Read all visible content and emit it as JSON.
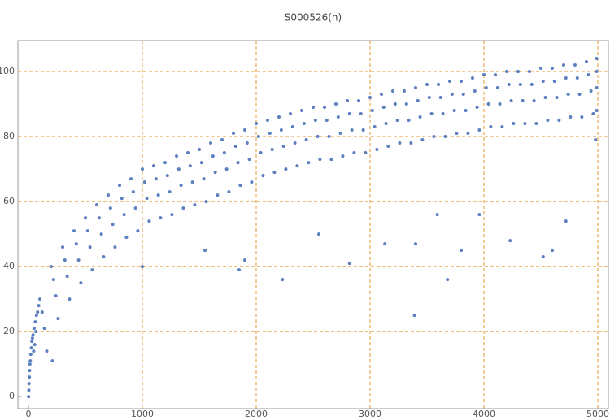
{
  "chart_data": {
    "type": "scatter",
    "title": "S000526(n)",
    "color": "#5b7fbf",
    "grid": true,
    "xlim": [
      -93,
      5093
    ],
    "ylim": [
      -3.7,
      109.5
    ],
    "xticks": [
      0,
      1000,
      2000,
      3000,
      4000,
      5000
    ],
    "yticks": [
      0,
      20,
      40,
      60,
      80,
      100
    ],
    "x": [
      100,
      120,
      140,
      160,
      200,
      220,
      240,
      260,
      300,
      320,
      340,
      360,
      400,
      420,
      440,
      460,
      500,
      520,
      540,
      560,
      600,
      620,
      640,
      660,
      700,
      720,
      740,
      760,
      800,
      820,
      840,
      860,
      900,
      920,
      940,
      960,
      1000,
      1020,
      1040,
      1060,
      1100,
      1120,
      1140,
      1160,
      1200,
      1220,
      1240,
      1260,
      1300,
      1320,
      1340,
      1360,
      1400,
      1420,
      1440,
      1460,
      1500,
      1520,
      1540,
      1560,
      1600,
      1620,
      1640,
      1660,
      1700,
      1720,
      1740,
      1760,
      1800,
      1820,
      1840,
      1860,
      1900,
      1920,
      1940,
      1960,
      2000,
      2020,
      2040,
      2060,
      2100,
      2120,
      2140,
      2160,
      2200,
      2220,
      2240,
      2260,
      2300,
      2320,
      2340,
      2360,
      2400,
      2420,
      2440,
      2460,
      2500,
      2520,
      2540,
      2560,
      2600,
      2620,
      2640,
      2660,
      2700,
      2720,
      2740,
      2760,
      2800,
      2820,
      2840,
      2860,
      2900,
      2920,
      2940,
      2960,
      3000,
      3020,
      3040,
      3060,
      3100,
      3120,
      3140,
      3160,
      3200,
      3220,
      3240,
      3260,
      3300,
      3320,
      3340,
      3360,
      3400,
      3420,
      3440,
      3460,
      3500,
      3520,
      3540,
      3560,
      3600,
      3620,
      3640,
      3660,
      3700,
      3720,
      3740,
      3760,
      3800,
      3820,
      3840,
      3860,
      3900,
      3920,
      3940,
      3960,
      4000,
      4020,
      4040,
      4060,
      4100,
      4120,
      4140,
      4160,
      4200,
      4220,
      4240,
      4260,
      4300,
      4320,
      4340,
      4360,
      4400,
      4420,
      4440,
      4460,
      4500,
      4520,
      4540,
      4560,
      4600,
      4620,
      4640,
      4660,
      4700,
      4720,
      4740,
      4760,
      4800,
      4820,
      4840,
      4860,
      4900,
      4920,
      4940,
      4960,
      4990,
      4990,
      4990,
      4990,
      1,
      3,
      5,
      8,
      10,
      13,
      16,
      20,
      25,
      30,
      35,
      40,
      50,
      60,
      70,
      80,
      45,
      55,
      65,
      90,
      210,
      2230,
      2820,
      3390,
      3680,
      4520,
      3130,
      3400,
      3800,
      4230,
      4600,
      1850,
      1900,
      2550,
      4720,
      4980,
      1000,
      1550,
      3960,
      3590
    ],
    "values": [
      30,
      26,
      21,
      14,
      40,
      36,
      31,
      24,
      46,
      42,
      37,
      30,
      51,
      47,
      42,
      35,
      55,
      51,
      46,
      39,
      59,
      55,
      50,
      43,
      62,
      58,
      53,
      46,
      65,
      61,
      56,
      49,
      67,
      63,
      58,
      51,
      70,
      66,
      61,
      54,
      71,
      67,
      62,
      55,
      72,
      68,
      63,
      56,
      74,
      70,
      65,
      58,
      75,
      71,
      66,
      59,
      76,
      72,
      67,
      60,
      78,
      74,
      69,
      62,
      79,
      75,
      70,
      63,
      81,
      77,
      72,
      65,
      82,
      78,
      73,
      66,
      84,
      80,
      75,
      68,
      85,
      81,
      76,
      69,
      86,
      82,
      77,
      70,
      87,
      83,
      78,
      71,
      88,
      84,
      79,
      72,
      89,
      85,
      80,
      73,
      89,
      85,
      80,
      73,
      90,
      86,
      81,
      74,
      91,
      87,
      82,
      75,
      91,
      87,
      82,
      75,
      92,
      88,
      83,
      76,
      93,
      89,
      84,
      77,
      94,
      90,
      85,
      78,
      94,
      90,
      85,
      78,
      95,
      91,
      86,
      79,
      96,
      92,
      87,
      80,
      96,
      92,
      87,
      80,
      97,
      93,
      88,
      81,
      97,
      93,
      88,
      81,
      98,
      94,
      89,
      82,
      99,
      95,
      90,
      83,
      99,
      95,
      90,
      83,
      100,
      96,
      91,
      84,
      100,
      96,
      91,
      84,
      100,
      96,
      91,
      84,
      101,
      97,
      92,
      85,
      101,
      97,
      92,
      85,
      102,
      98,
      93,
      86,
      102,
      98,
      93,
      86,
      103,
      99,
      94,
      87,
      104,
      100,
      95,
      88,
      0,
      2,
      4,
      6,
      8,
      10,
      11,
      13,
      15,
      17,
      18,
      19,
      21,
      23,
      25,
      26,
      14,
      16,
      20,
      28,
      11,
      36,
      41,
      25,
      36,
      43,
      47,
      47,
      45,
      48,
      45,
      39,
      42,
      50,
      54,
      79,
      40,
      45,
      56,
      56
    ]
  }
}
